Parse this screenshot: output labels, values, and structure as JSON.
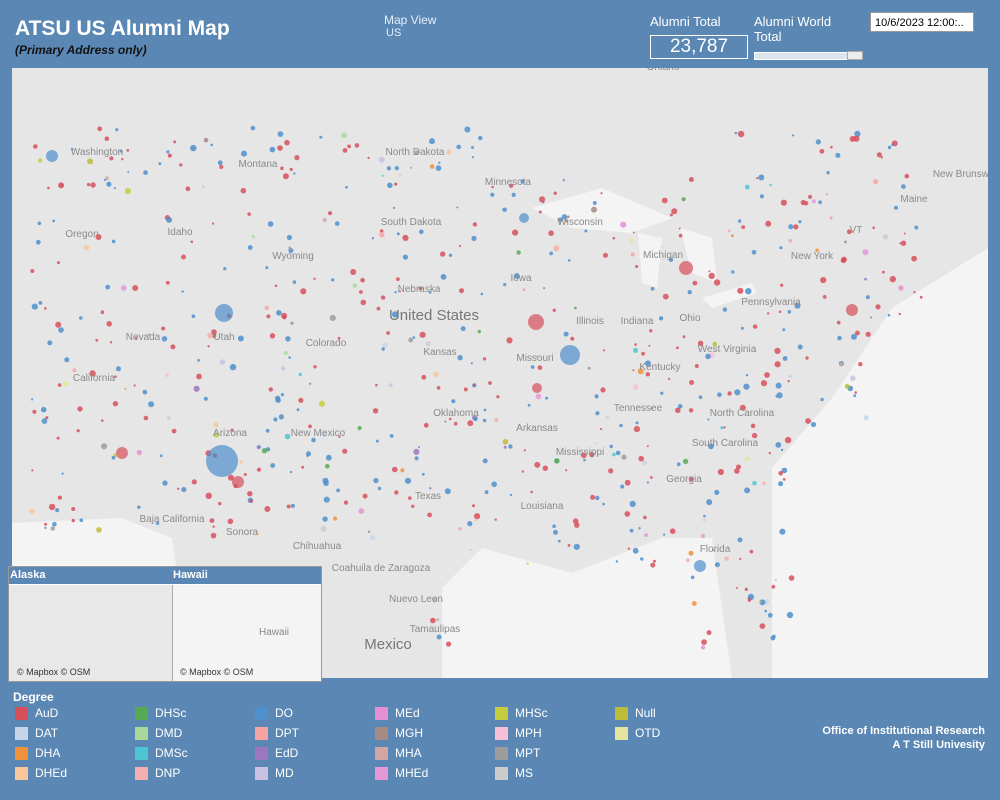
{
  "header": {
    "title": "ATSU  US Alumni Map",
    "subtitle": "(Primary Address only)",
    "map_view_label": "Map View",
    "map_view_value": "US",
    "alumni_total_label": "Alumni Total",
    "alumni_total_value": "23,787",
    "world_total_label": "Alumni World Total",
    "date": "10/6/2023 12:00:.."
  },
  "map": {
    "labels": [
      "Washington",
      "Montana",
      "North Dakota",
      "Minnesota",
      "Oregon",
      "Idaho",
      "Wyoming",
      "South Dakota",
      "Wisconsin",
      "Michigan",
      "Maine",
      "New Brunswick",
      "VT",
      "New York",
      "Iowa",
      "Nebraska",
      "Nevada",
      "Utah",
      "Colorado",
      "United States",
      "Kansas",
      "Illinois",
      "Indiana",
      "Ohio",
      "Pennsylvania",
      "West Virginia",
      "Missouri",
      "California",
      "Kentucky",
      "Oklahoma",
      "Tennessee",
      "North Carolina",
      "Arizona",
      "New Mexico",
      "Arkansas",
      "South Carolina",
      "Mississippi",
      "Georgia",
      "Texas",
      "Louisiana",
      "Baja California",
      "Sonora",
      "Chihuahua",
      "Florida",
      "Coahuila de Zaragoza",
      "Nuevo Leon",
      "Tamaulipas",
      "Mexico",
      "Ontario"
    ],
    "insets": [
      {
        "title": "Alaska",
        "credit": "© Mapbox © OSM"
      },
      {
        "title": "Hawaii",
        "credit": "© Mapbox © OSM",
        "label": "Hawaii"
      }
    ]
  },
  "legend": {
    "title": "Degree",
    "items": [
      {
        "name": "AuD",
        "color": "#d64f5a"
      },
      {
        "name": "DAT",
        "color": "#c5d6ea"
      },
      {
        "name": "DHA",
        "color": "#f0913b"
      },
      {
        "name": "DHEd",
        "color": "#f7c69a"
      },
      {
        "name": "DHSc",
        "color": "#59a854"
      },
      {
        "name": "DMD",
        "color": "#a8d99b"
      },
      {
        "name": "DMSc",
        "color": "#4dc6d3"
      },
      {
        "name": "DNP",
        "color": "#f4b0b0"
      },
      {
        "name": "DO",
        "color": "#4f8fcb"
      },
      {
        "name": "DPT",
        "color": "#f7a3a3"
      },
      {
        "name": "EdD",
        "color": "#9e76c0"
      },
      {
        "name": "MD",
        "color": "#c9c0e2"
      },
      {
        "name": "MEd",
        "color": "#e58fd4"
      },
      {
        "name": "MGH",
        "color": "#a58a84"
      },
      {
        "name": "MHA",
        "color": "#cfa6a2"
      },
      {
        "name": "MHEd",
        "color": "#e59ad6"
      },
      {
        "name": "MHSc",
        "color": "#c6cc3f"
      },
      {
        "name": "MPH",
        "color": "#f5c0d8"
      },
      {
        "name": "MPT",
        "color": "#9c9c9c"
      },
      {
        "name": "MS",
        "color": "#cccccc"
      },
      {
        "name": "Null",
        "color": "#bcbc3a"
      },
      {
        "name": "OTD",
        "color": "#e5e3a0"
      }
    ]
  },
  "footer": {
    "line1": "Office of Institutional Research",
    "line2": "A T Still Univesity"
  }
}
